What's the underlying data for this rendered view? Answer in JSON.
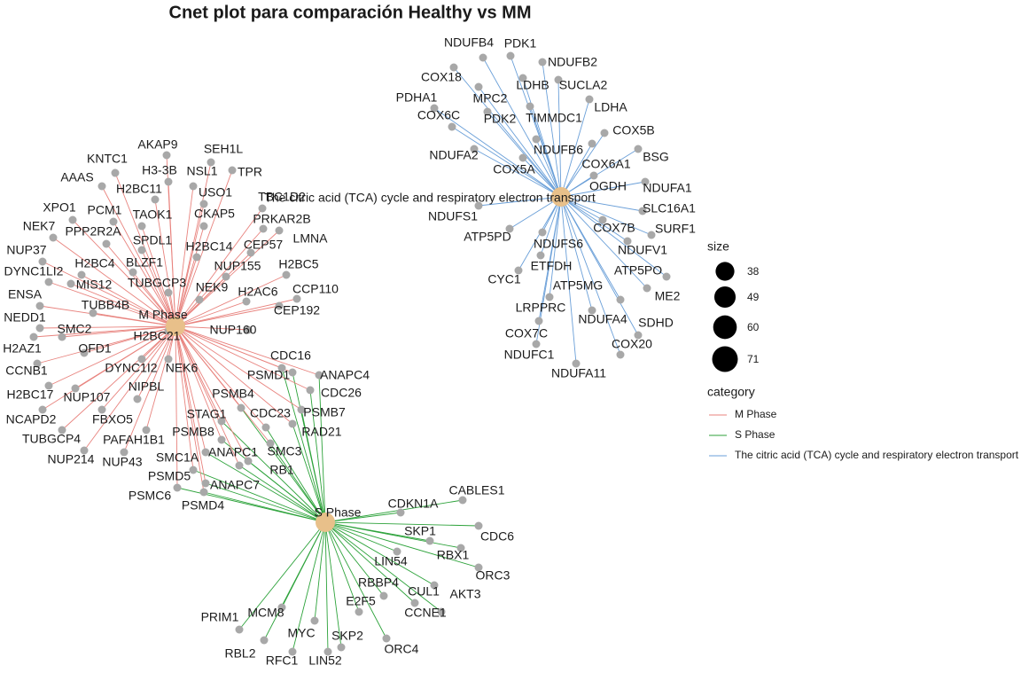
{
  "title": "Cnet plot para comparación Healthy vs MM",
  "hubs": [
    {
      "label": "M Phase",
      "color": "#e8837e"
    },
    {
      "label": "S Phase",
      "color": "#2ca23a"
    },
    {
      "label": "The citric acid (TCA) cycle and respiratory electron transport",
      "color": "#6a9fd8"
    }
  ],
  "genes": [
    {
      "label": "AKAP9",
      "links": [
        0
      ]
    },
    {
      "label": "SEH1L",
      "links": [
        0
      ]
    },
    {
      "label": "KNTC1",
      "links": [
        0
      ]
    },
    {
      "label": "H3-3B",
      "links": [
        0
      ]
    },
    {
      "label": "NSL1",
      "links": [
        0
      ]
    },
    {
      "label": "TPR",
      "links": [
        0
      ]
    },
    {
      "label": "AAAS",
      "links": [
        0
      ]
    },
    {
      "label": "H2BC11",
      "links": [
        0
      ]
    },
    {
      "label": "USO1",
      "links": [
        0
      ]
    },
    {
      "label": "TBC1D2",
      "links": [
        0
      ]
    },
    {
      "label": "XPO1",
      "links": [
        0
      ]
    },
    {
      "label": "PCM1",
      "links": [
        0
      ]
    },
    {
      "label": "TAOK1",
      "links": [
        0
      ]
    },
    {
      "label": "CKAP5",
      "links": [
        0
      ]
    },
    {
      "label": "PRKAR2B",
      "links": [
        0
      ]
    },
    {
      "label": "NEK7",
      "links": [
        0
      ]
    },
    {
      "label": "PPP2R2A",
      "links": [
        0
      ]
    },
    {
      "label": "SPDL1",
      "links": [
        0
      ]
    },
    {
      "label": "LMNA",
      "links": [
        0
      ]
    },
    {
      "label": "H2BC14",
      "links": [
        0
      ]
    },
    {
      "label": "CEP57",
      "links": [
        0
      ]
    },
    {
      "label": "NUP37",
      "links": [
        0
      ]
    },
    {
      "label": "BLZF1",
      "links": [
        0
      ]
    },
    {
      "label": "H2BC4",
      "links": [
        0
      ]
    },
    {
      "label": "NUP155",
      "links": [
        0
      ]
    },
    {
      "label": "H2BC5",
      "links": [
        0
      ]
    },
    {
      "label": "DYNC1LI2",
      "links": [
        0
      ]
    },
    {
      "label": "MIS12",
      "links": [
        0
      ]
    },
    {
      "label": "TUBGCP3",
      "links": [
        0
      ]
    },
    {
      "label": "NEK9",
      "links": [
        0
      ]
    },
    {
      "label": "CCP110",
      "links": [
        0
      ]
    },
    {
      "label": "ENSA",
      "links": [
        0
      ]
    },
    {
      "label": "H2AC6",
      "links": [
        0
      ]
    },
    {
      "label": "TUBB4B",
      "links": [
        0
      ]
    },
    {
      "label": "CEP192",
      "links": [
        0
      ]
    },
    {
      "label": "NEDD1",
      "links": [
        0
      ]
    },
    {
      "label": "SMC2",
      "links": [
        0
      ]
    },
    {
      "label": "H2BC21",
      "links": [
        0
      ]
    },
    {
      "label": "NUP160",
      "links": [
        0
      ]
    },
    {
      "label": "H2AZ1",
      "links": [
        0
      ]
    },
    {
      "label": "OFD1",
      "links": [
        0
      ]
    },
    {
      "label": "DYNC1I2",
      "links": [
        0
      ]
    },
    {
      "label": "NEK6",
      "links": [
        0
      ]
    },
    {
      "label": "CCNB1",
      "links": [
        0
      ]
    },
    {
      "label": "H2BC17",
      "links": [
        0
      ]
    },
    {
      "label": "NUP107",
      "links": [
        0
      ]
    },
    {
      "label": "NIPBL",
      "links": [
        0
      ]
    },
    {
      "label": "NCAPD2",
      "links": [
        0
      ]
    },
    {
      "label": "FBXO5",
      "links": [
        0
      ]
    },
    {
      "label": "TUBGCP4",
      "links": [
        0
      ]
    },
    {
      "label": "PAFAH1B1",
      "links": [
        0
      ]
    },
    {
      "label": "NUP214",
      "links": [
        0
      ]
    },
    {
      "label": "NUP43",
      "links": [
        0
      ]
    },
    {
      "label": "CDC16",
      "links": [
        0,
        1
      ]
    },
    {
      "label": "PSMD1",
      "links": [
        0,
        1
      ]
    },
    {
      "label": "ANAPC4",
      "links": [
        0,
        1
      ]
    },
    {
      "label": "CDC26",
      "links": [
        0,
        1
      ]
    },
    {
      "label": "PSMB4",
      "links": [
        0,
        1
      ]
    },
    {
      "label": "PSMB7",
      "links": [
        0,
        1
      ]
    },
    {
      "label": "STAG1",
      "links": [
        0,
        1
      ]
    },
    {
      "label": "CDC23",
      "links": [
        0,
        1
      ]
    },
    {
      "label": "RAD21",
      "links": [
        0,
        1
      ]
    },
    {
      "label": "PSMB8",
      "links": [
        0,
        1
      ]
    },
    {
      "label": "SMC3",
      "links": [
        0,
        1
      ]
    },
    {
      "label": "ANAPC1",
      "links": [
        0,
        1
      ]
    },
    {
      "label": "SMC1A",
      "links": [
        0,
        1
      ]
    },
    {
      "label": "RB1",
      "links": [
        0,
        1
      ]
    },
    {
      "label": "PSMD5",
      "links": [
        0,
        1
      ]
    },
    {
      "label": "ANAPC7",
      "links": [
        0,
        1
      ]
    },
    {
      "label": "PSMC6",
      "links": [
        0,
        1
      ]
    },
    {
      "label": "PSMD4",
      "links": [
        0,
        1
      ]
    },
    {
      "label": "CABLES1",
      "links": [
        1
      ]
    },
    {
      "label": "CDKN1A",
      "links": [
        1
      ]
    },
    {
      "label": "CDC6",
      "links": [
        1
      ]
    },
    {
      "label": "SKP1",
      "links": [
        1
      ]
    },
    {
      "label": "RBX1",
      "links": [
        1
      ]
    },
    {
      "label": "LIN54",
      "links": [
        1
      ]
    },
    {
      "label": "ORC3",
      "links": [
        1
      ]
    },
    {
      "label": "RBBP4",
      "links": [
        1
      ]
    },
    {
      "label": "CUL1",
      "links": [
        1
      ]
    },
    {
      "label": "AKT3",
      "links": [
        1
      ]
    },
    {
      "label": "E2F5",
      "links": [
        1
      ]
    },
    {
      "label": "CCNE1",
      "links": [
        1
      ]
    },
    {
      "label": "PRIM1",
      "links": [
        1
      ]
    },
    {
      "label": "MCM8",
      "links": [
        1
      ]
    },
    {
      "label": "MYC",
      "links": [
        1
      ]
    },
    {
      "label": "SKP2",
      "links": [
        1
      ]
    },
    {
      "label": "RBL2",
      "links": [
        1
      ]
    },
    {
      "label": "RFC1",
      "links": [
        1
      ]
    },
    {
      "label": "LIN52",
      "links": [
        1
      ]
    },
    {
      "label": "ORC4",
      "links": [
        1
      ]
    },
    {
      "label": "NDUFB4",
      "links": [
        2
      ]
    },
    {
      "label": "PDK1",
      "links": [
        2
      ]
    },
    {
      "label": "NDUFB2",
      "links": [
        2
      ]
    },
    {
      "label": "COX18",
      "links": [
        2
      ]
    },
    {
      "label": "MPC2",
      "links": [
        2
      ]
    },
    {
      "label": "LDHB",
      "links": [
        2
      ]
    },
    {
      "label": "SUCLA2",
      "links": [
        2
      ]
    },
    {
      "label": "PDHA1",
      "links": [
        2
      ]
    },
    {
      "label": "PDK2",
      "links": [
        2
      ]
    },
    {
      "label": "TIMMDC1",
      "links": [
        2
      ]
    },
    {
      "label": "LDHA",
      "links": [
        2
      ]
    },
    {
      "label": "COX6C",
      "links": [
        2
      ]
    },
    {
      "label": "COX5B",
      "links": [
        2
      ]
    },
    {
      "label": "NDUFB6",
      "links": [
        2
      ]
    },
    {
      "label": "BSG",
      "links": [
        2
      ]
    },
    {
      "label": "NDUFA2",
      "links": [
        2
      ]
    },
    {
      "label": "COX6A1",
      "links": [
        2
      ]
    },
    {
      "label": "COX5A",
      "links": [
        2
      ]
    },
    {
      "label": "OGDH",
      "links": [
        2
      ]
    },
    {
      "label": "NDUFA1",
      "links": [
        2
      ]
    },
    {
      "label": "NDUFS1",
      "links": [
        2
      ]
    },
    {
      "label": "SLC16A1",
      "links": [
        2
      ]
    },
    {
      "label": "COX7B",
      "links": [
        2
      ]
    },
    {
      "label": "SURF1",
      "links": [
        2
      ]
    },
    {
      "label": "ATP5PD",
      "links": [
        2
      ]
    },
    {
      "label": "NDUFS6",
      "links": [
        2
      ]
    },
    {
      "label": "NDUFV1",
      "links": [
        2
      ]
    },
    {
      "label": "ETFDH",
      "links": [
        2
      ]
    },
    {
      "label": "ATP5PO",
      "links": [
        2
      ]
    },
    {
      "label": "CYC1",
      "links": [
        2
      ]
    },
    {
      "label": "ATP5MG",
      "links": [
        2
      ]
    },
    {
      "label": "ME2",
      "links": [
        2
      ]
    },
    {
      "label": "LRPPRC",
      "links": [
        2
      ]
    },
    {
      "label": "NDUFA4",
      "links": [
        2
      ]
    },
    {
      "label": "SDHD",
      "links": [
        2
      ]
    },
    {
      "label": "COX7C",
      "links": [
        2
      ]
    },
    {
      "label": "COX20",
      "links": [
        2
      ]
    },
    {
      "label": "NDUFC1",
      "links": [
        2
      ]
    },
    {
      "label": "NDUFA11",
      "links": [
        2
      ]
    }
  ],
  "legend": {
    "size_title": "size",
    "sizes": [
      38,
      49,
      60,
      71
    ],
    "category_title": "category"
  }
}
